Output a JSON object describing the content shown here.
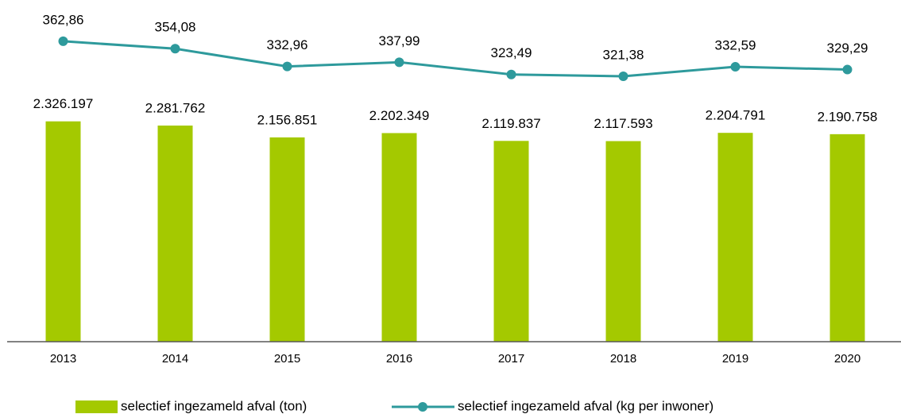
{
  "chart_data": {
    "type": "bar-line",
    "categories": [
      "2013",
      "2014",
      "2015",
      "2016",
      "2017",
      "2018",
      "2019",
      "2020"
    ],
    "series": [
      {
        "name": "selectief ingezameld afval (ton)",
        "type": "bar",
        "color": "#a4c900",
        "values": [
          2326197,
          2281762,
          2156851,
          2202349,
          2119837,
          2117593,
          2204791,
          2190758
        ],
        "value_labels": [
          "2.326.197",
          "2.281.762",
          "2.156.851",
          "2.202.349",
          "2.119.837",
          "2.117.593",
          "2.204.791",
          "2.190.758"
        ]
      },
      {
        "name": "selectief ingezameld afval (kg per inwoner)",
        "type": "line",
        "axis": "y2",
        "color": "#2e9a9c",
        "values": [
          362.86,
          354.08,
          332.96,
          337.99,
          323.49,
          321.38,
          332.59,
          329.29
        ],
        "value_labels": [
          "362,86",
          "354,08",
          "332,96",
          "337,99",
          "323,49",
          "321,38",
          "332,59",
          "329,29"
        ]
      }
    ],
    "ylim": [
      0,
      2500000
    ],
    "y2lim": [
      200,
      400
    ],
    "legend": "bottom"
  }
}
